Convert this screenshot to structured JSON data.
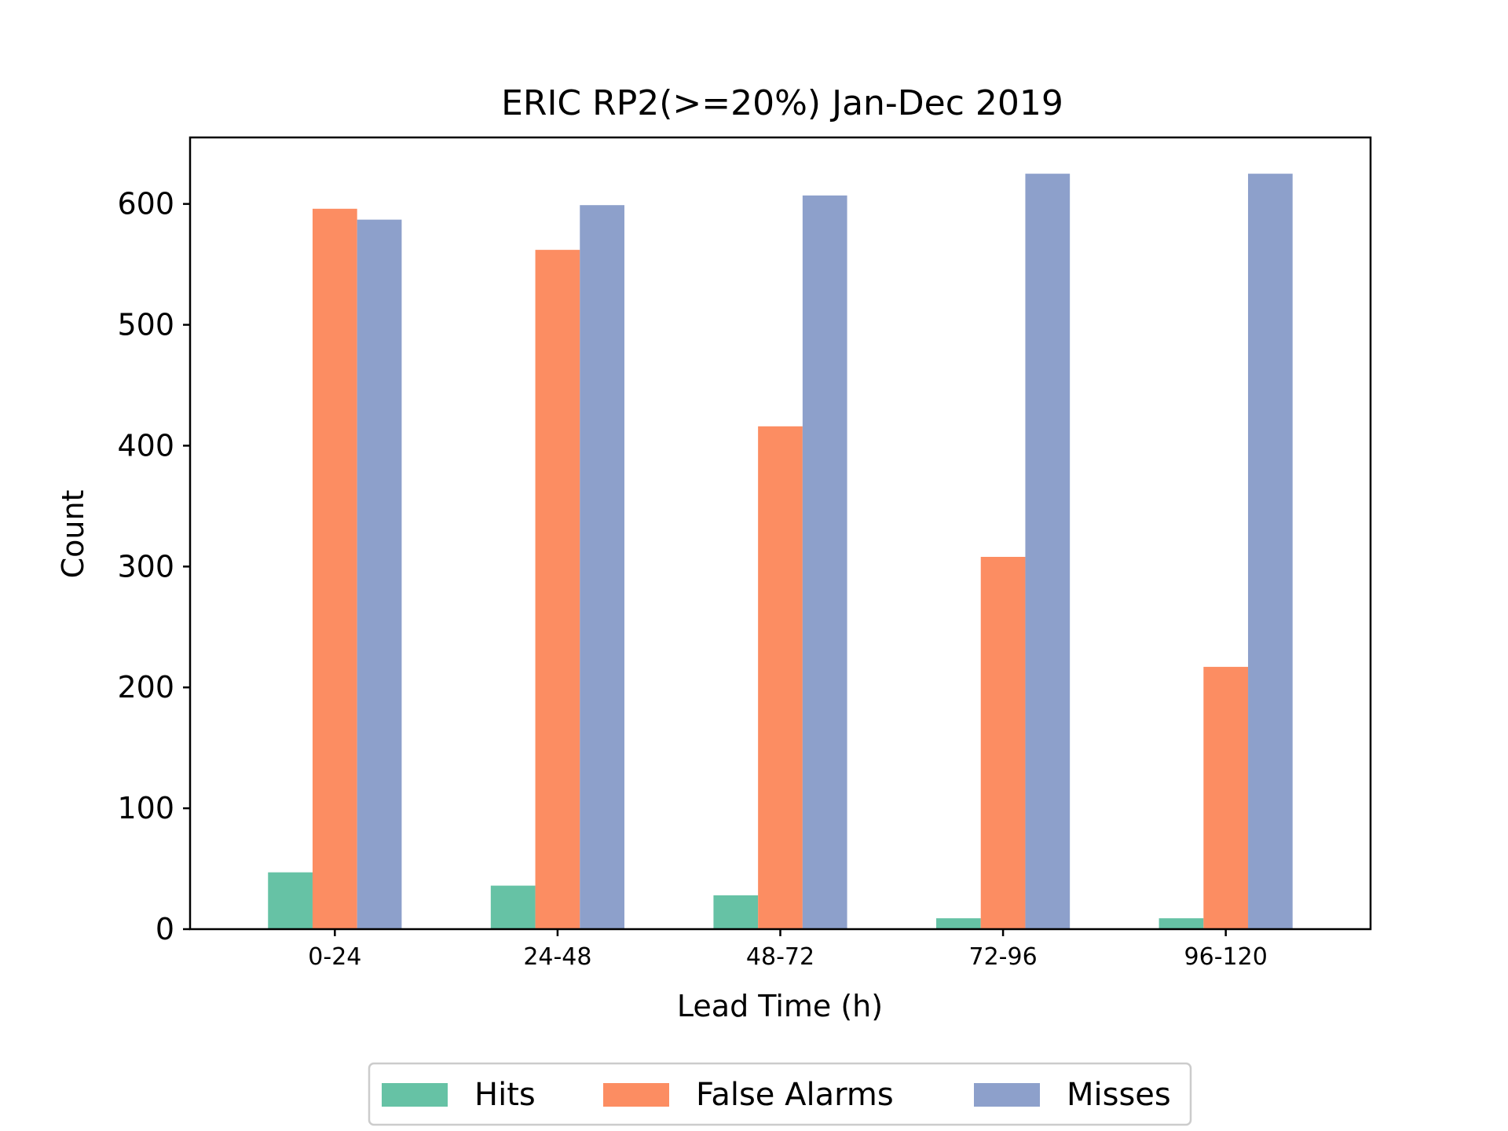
{
  "chart_data": {
    "type": "bar",
    "title": "ERIC RP2(>=20%) Jan-Dec 2019",
    "xlabel": "Lead Time (h)",
    "ylabel": "Count",
    "categories": [
      "0-24",
      "24-48",
      "48-72",
      "72-96",
      "96-120"
    ],
    "ylim": [
      0,
      655
    ],
    "yticks": [
      "0",
      "100",
      "200",
      "300",
      "400",
      "500",
      "600"
    ],
    "legend_position": "bottom-center",
    "grid": false,
    "series": [
      {
        "name": "Hits",
        "color": "#66c2a5",
        "values": [
          47,
          36,
          28,
          9,
          9
        ]
      },
      {
        "name": "False Alarms",
        "color": "#fc8d62",
        "values": [
          596,
          562,
          416,
          308,
          217
        ]
      },
      {
        "name": "Misses",
        "color": "#8da0cb",
        "values": [
          587,
          599,
          607,
          625,
          625
        ]
      }
    ]
  }
}
